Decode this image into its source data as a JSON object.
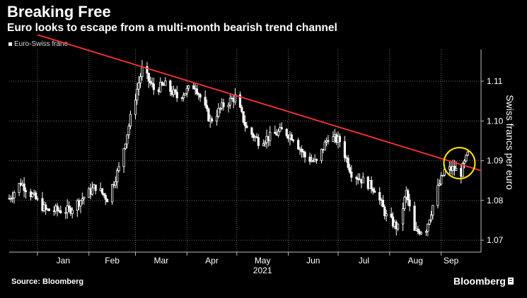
{
  "header": {
    "title": "Breaking Free",
    "subtitle": "Euro looks to escape from a multi-month bearish trend channel"
  },
  "footer": {
    "source": "Source: Bloomberg",
    "brand": "Bloomberg"
  },
  "colors": {
    "background": "#000000",
    "candles": "#ffffff",
    "trendline": "#ff3333",
    "highlight_circle": "#ffe600",
    "grid": "#6a6a6a"
  },
  "chart_data": {
    "type": "candlestick",
    "legend": [
      "Euro-Swiss franc"
    ],
    "legend_placement": "top-left",
    "ylabel": "Swiss francs per euro",
    "y_axis_side": "right",
    "ylim": [
      1.067,
      1.118
    ],
    "yticks": [
      1.07,
      1.08,
      1.09,
      1.1,
      1.11
    ],
    "ytick_labels": [
      "1.07",
      "1.08",
      "1.09",
      "1.10",
      "1.11"
    ],
    "x_range": [
      "2020-12-15",
      "2021-09-25"
    ],
    "year_label": "2021",
    "month_ticks": [
      {
        "date": "2021-01-01",
        "label": "Jan"
      },
      {
        "date": "2021-02-01",
        "label": "Feb"
      },
      {
        "date": "2021-03-01",
        "label": "Mar"
      },
      {
        "date": "2021-04-01",
        "label": "Apr"
      },
      {
        "date": "2021-05-01",
        "label": "May"
      },
      {
        "date": "2021-06-01",
        "label": "Jun"
      },
      {
        "date": "2021-07-01",
        "label": "Jul"
      },
      {
        "date": "2021-08-01",
        "label": "Aug"
      },
      {
        "date": "2021-09-01",
        "label": "Sep"
      }
    ],
    "grid": "dotted",
    "series": [
      {
        "name": "Euro-Swiss franc",
        "approx_close": [
          {
            "date": "2020-12-15",
            "value": 1.0805
          },
          {
            "date": "2020-12-22",
            "value": 1.0845
          },
          {
            "date": "2021-01-06",
            "value": 1.0775
          },
          {
            "date": "2021-01-20",
            "value": 1.0775
          },
          {
            "date": "2021-02-05",
            "value": 1.0835
          },
          {
            "date": "2021-02-12",
            "value": 1.0805
          },
          {
            "date": "2021-02-19",
            "value": 1.088
          },
          {
            "date": "2021-02-24",
            "value": 1.097
          },
          {
            "date": "2021-03-02",
            "value": 1.108
          },
          {
            "date": "2021-03-05",
            "value": 1.113
          },
          {
            "date": "2021-03-12",
            "value": 1.108
          },
          {
            "date": "2021-03-19",
            "value": 1.109
          },
          {
            "date": "2021-03-26",
            "value": 1.106
          },
          {
            "date": "2021-04-06",
            "value": 1.109
          },
          {
            "date": "2021-04-15",
            "value": 1.1
          },
          {
            "date": "2021-04-23",
            "value": 1.104
          },
          {
            "date": "2021-04-30",
            "value": 1.106
          },
          {
            "date": "2021-05-07",
            "value": 1.098
          },
          {
            "date": "2021-05-14",
            "value": 1.095
          },
          {
            "date": "2021-05-21",
            "value": 1.096
          },
          {
            "date": "2021-05-28",
            "value": 1.0975
          },
          {
            "date": "2021-06-04",
            "value": 1.096
          },
          {
            "date": "2021-06-11",
            "value": 1.091
          },
          {
            "date": "2021-06-18",
            "value": 1.0895
          },
          {
            "date": "2021-06-25",
            "value": 1.096
          },
          {
            "date": "2021-07-02",
            "value": 1.095
          },
          {
            "date": "2021-07-09",
            "value": 1.087
          },
          {
            "date": "2021-07-16",
            "value": 1.085
          },
          {
            "date": "2021-07-23",
            "value": 1.083
          },
          {
            "date": "2021-07-30",
            "value": 1.076
          },
          {
            "date": "2021-08-06",
            "value": 1.073
          },
          {
            "date": "2021-08-11",
            "value": 1.082
          },
          {
            "date": "2021-08-16",
            "value": 1.072
          },
          {
            "date": "2021-08-23",
            "value": 1.073
          },
          {
            "date": "2021-08-30",
            "value": 1.083
          },
          {
            "date": "2021-09-03",
            "value": 1.0875
          },
          {
            "date": "2021-09-08",
            "value": 1.088
          },
          {
            "date": "2021-09-13",
            "value": 1.087
          },
          {
            "date": "2021-09-17",
            "value": 1.0915
          }
        ]
      }
    ],
    "annotations": [
      {
        "type": "trendline",
        "from": {
          "date": "2021-01-01",
          "value": 1.1217
        },
        "to": {
          "date": "2021-09-25",
          "value": 1.0875
        }
      },
      {
        "type": "circle",
        "center": {
          "date": "2021-09-12",
          "value": 1.0894
        }
      }
    ]
  }
}
